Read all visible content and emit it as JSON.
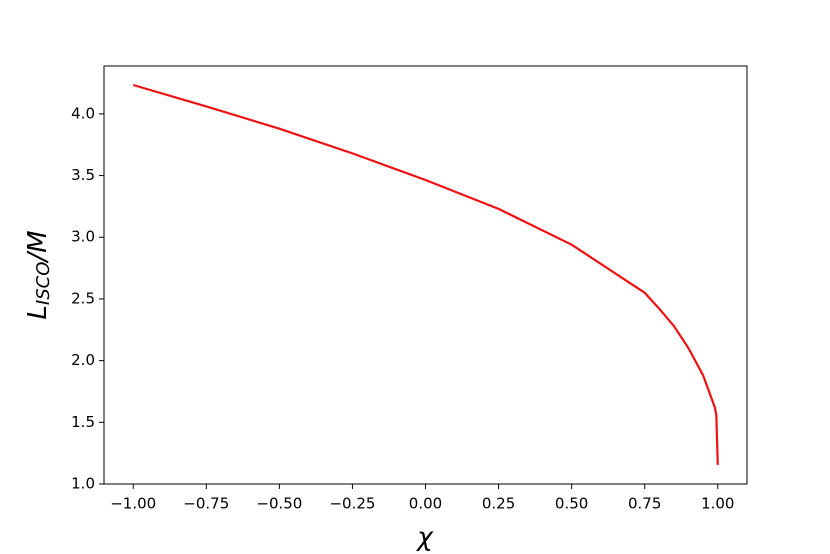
{
  "chart_data": {
    "type": "line",
    "xlabel": "χ",
    "ylabel": {
      "main": "L",
      "sub": "ISCO",
      "tail": "/M"
    },
    "x": [
      -1.0,
      -0.75,
      -0.5,
      -0.25,
      0.0,
      0.25,
      0.5,
      0.75,
      0.8,
      0.85,
      0.9,
      0.95,
      0.99,
      0.995,
      1.0
    ],
    "series": [
      {
        "color": "#ee1111",
        "values": [
          4.234,
          4.06,
          3.88,
          3.68,
          3.464,
          3.23,
          2.94,
          2.55,
          2.42,
          2.28,
          2.1,
          1.88,
          1.62,
          1.56,
          1.155
        ]
      }
    ],
    "xlim": [
      -1.1,
      1.1
    ],
    "ylim": [
      1.0,
      4.388
    ],
    "xticks": [
      {
        "value": -1.0,
        "label": "−1.00"
      },
      {
        "value": -0.75,
        "label": "−0.75"
      },
      {
        "value": -0.5,
        "label": "−0.50"
      },
      {
        "value": -0.25,
        "label": "−0.25"
      },
      {
        "value": 0,
        "label": "0.00"
      },
      {
        "value": 0.25,
        "label": "0.25"
      },
      {
        "value": 0.5,
        "label": "0.50"
      },
      {
        "value": 0.75,
        "label": "0.75"
      },
      {
        "value": 1.0,
        "label": "1.00"
      }
    ],
    "yticks": [
      {
        "value": 1.0,
        "label": "1.0"
      },
      {
        "value": 1.5,
        "label": "1.5"
      },
      {
        "value": 2.0,
        "label": "2.0"
      },
      {
        "value": 2.5,
        "label": "2.5"
      },
      {
        "value": 3.0,
        "label": "3.0"
      },
      {
        "value": 3.5,
        "label": "3.5"
      },
      {
        "value": 4.0,
        "label": "4.0"
      }
    ]
  }
}
